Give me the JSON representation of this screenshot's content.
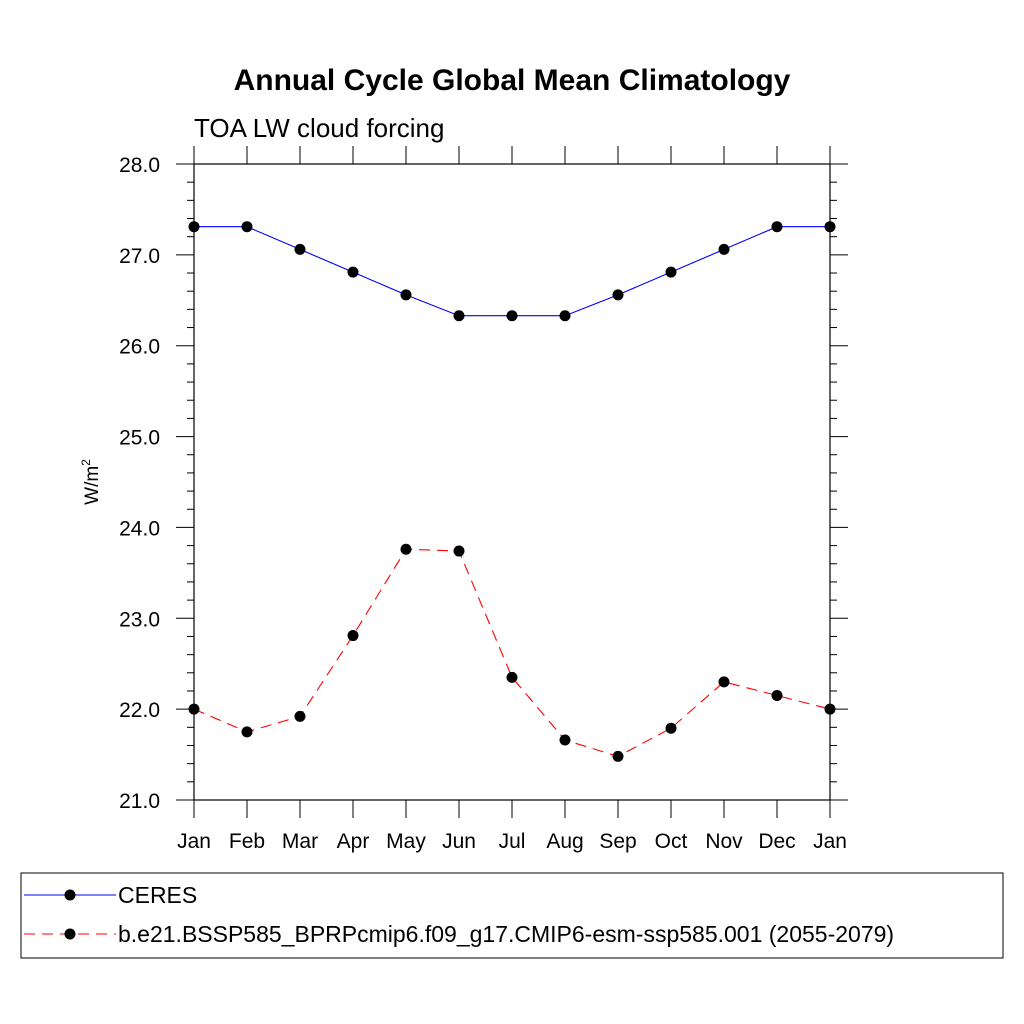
{
  "chart_data": {
    "type": "line",
    "title": "Annual Cycle Global Mean Climatology",
    "subtitle": "TOA LW cloud forcing",
    "ylabel": "W/m",
    "ylabel_superscript": "2",
    "xlabel": "",
    "categories": [
      "Jan",
      "Feb",
      "Mar",
      "Apr",
      "May",
      "Jun",
      "Jul",
      "Aug",
      "Sep",
      "Oct",
      "Nov",
      "Dec",
      "Jan"
    ],
    "ylim": [
      21.0,
      28.0
    ],
    "yticks": [
      "21.0",
      "22.0",
      "23.0",
      "24.0",
      "25.0",
      "26.0",
      "27.0",
      "28.0"
    ],
    "series": [
      {
        "name": "CERES",
        "color": "#0000ff",
        "dash": "solid",
        "values": [
          27.31,
          27.31,
          27.06,
          26.81,
          26.56,
          26.33,
          26.33,
          26.33,
          26.56,
          26.81,
          27.06,
          27.31,
          27.31
        ]
      },
      {
        "name": "b.e21.BSSP585_BPRPcmip6.f09_g17.CMIP6-esm-ssp585.001 (2055-2079)",
        "color": "#ff0000",
        "dash": "dashed",
        "values": [
          22.0,
          21.75,
          21.92,
          22.81,
          23.76,
          23.74,
          22.35,
          21.66,
          21.48,
          21.79,
          22.3,
          22.15,
          22.0
        ]
      }
    ],
    "legend_position": "bottom"
  }
}
